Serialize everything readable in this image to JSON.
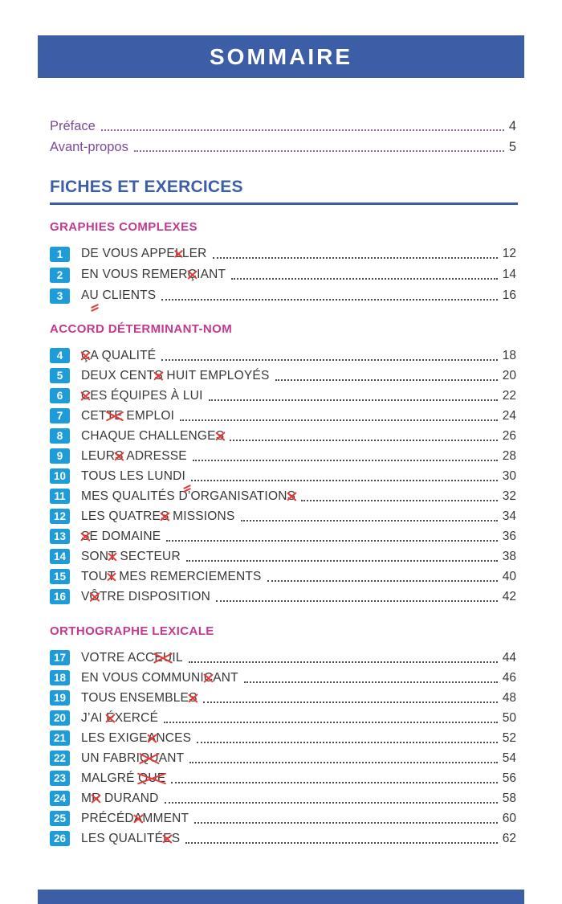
{
  "page": {
    "title": "SOMMAIRE"
  },
  "colors": {
    "header_blue": "#3b5ea6",
    "badge_blue": "#1d9cd9",
    "section_heading_pink": "#c2398e",
    "frontmatter_purple": "#7c4a9b",
    "error_mark_red": "#e23b38",
    "item_text": "#383838"
  },
  "front_matter": [
    {
      "label": "Préface",
      "page": "4"
    },
    {
      "label": "Avant-propos",
      "page": "5"
    }
  ],
  "main_heading": "FICHES ET EXERCICES",
  "sections": [
    {
      "heading": "GRAPHIES COMPLEXES",
      "items": [
        {
          "num": "1",
          "page": "12",
          "parts": [
            {
              "t": "DE VOUS APPE"
            },
            {
              "t": "L",
              "m": "x"
            },
            {
              "t": "LER"
            }
          ]
        },
        {
          "num": "2",
          "page": "14",
          "parts": [
            {
              "t": "EN VOUS REMER"
            },
            {
              "t": "Ç",
              "m": "x"
            },
            {
              "t": "IANT"
            }
          ]
        },
        {
          "num": "3",
          "page": "16",
          "parts": [
            {
              "t": "A"
            },
            {
              "t": "U",
              "m": "ins"
            },
            {
              "t": " CLIENTS"
            }
          ]
        }
      ]
    },
    {
      "heading": "ACCORD DÉTERMINANT-NOM",
      "items": [
        {
          "num": "4",
          "page": "18",
          "parts": [
            {
              "t": "Ç",
              "m": "x"
            },
            {
              "t": "A QUALITÉ"
            }
          ]
        },
        {
          "num": "5",
          "page": "20",
          "parts": [
            {
              "t": "DEUX CENT"
            },
            {
              "t": "S",
              "m": "x"
            },
            {
              "t": " HUIT EMPLOYÉS"
            }
          ]
        },
        {
          "num": "6",
          "page": "22",
          "parts": [
            {
              "t": "C",
              "m": "x"
            },
            {
              "t": "ES ÉQUIPES À LUI"
            }
          ]
        },
        {
          "num": "7",
          "page": "24",
          "parts": [
            {
              "t": "CET"
            },
            {
              "t": "TE",
              "m": "x"
            },
            {
              "t": " EMPLOI"
            }
          ]
        },
        {
          "num": "8",
          "page": "26",
          "parts": [
            {
              "t": "CHAQUE CHALLENGE"
            },
            {
              "t": "S",
              "m": "x"
            }
          ]
        },
        {
          "num": "9",
          "page": "28",
          "parts": [
            {
              "t": "LEUR"
            },
            {
              "t": "S",
              "m": "x"
            },
            {
              "t": " ADRESSE"
            }
          ]
        },
        {
          "num": "10",
          "page": "30",
          "parts": [
            {
              "t": "TOUS LES LUND"
            },
            {
              "t": "I",
              "m": "ins"
            }
          ]
        },
        {
          "num": "11",
          "page": "32",
          "parts": [
            {
              "t": "MES QUALITÉS D’ORGANISATION"
            },
            {
              "t": "S",
              "m": "x"
            }
          ]
        },
        {
          "num": "12",
          "page": "34",
          "parts": [
            {
              "t": "LES QUATRE"
            },
            {
              "t": "S",
              "m": "x"
            },
            {
              "t": " MISSIONS"
            }
          ]
        },
        {
          "num": "13",
          "page": "36",
          "parts": [
            {
              "t": "S",
              "m": "x"
            },
            {
              "t": "E DOMAINE"
            }
          ]
        },
        {
          "num": "14",
          "page": "38",
          "parts": [
            {
              "t": "SON"
            },
            {
              "t": "T",
              "m": "x"
            },
            {
              "t": " SECTEUR"
            }
          ]
        },
        {
          "num": "15",
          "page": "40",
          "parts": [
            {
              "t": "TOU"
            },
            {
              "t": "T",
              "m": "x"
            },
            {
              "t": " MES REMERCIEMENTS"
            }
          ]
        },
        {
          "num": "16",
          "page": "42",
          "parts": [
            {
              "t": "V"
            },
            {
              "t": "Ô",
              "m": "x"
            },
            {
              "t": "TRE DISPOSITION"
            }
          ]
        }
      ]
    },
    {
      "heading": "ORTHOGRAPHE LEXICALE",
      "items": [
        {
          "num": "17",
          "page": "44",
          "parts": [
            {
              "t": "VOTRE ACC"
            },
            {
              "t": "EU",
              "m": "x"
            },
            {
              "t": "IL"
            }
          ]
        },
        {
          "num": "18",
          "page": "46",
          "parts": [
            {
              "t": "EN VOUS COMMUNI"
            },
            {
              "t": "C",
              "m": "x"
            },
            {
              "t": "ANT"
            }
          ]
        },
        {
          "num": "19",
          "page": "48",
          "parts": [
            {
              "t": "TOUS ENSEMBLE"
            },
            {
              "t": "S",
              "m": "x"
            }
          ]
        },
        {
          "num": "20",
          "page": "50",
          "parts": [
            {
              "t": "J’AI "
            },
            {
              "t": "É",
              "m": "x"
            },
            {
              "t": "XERCÉ"
            }
          ]
        },
        {
          "num": "21",
          "page": "52",
          "parts": [
            {
              "t": "LES EXIGE"
            },
            {
              "t": "A",
              "m": "x"
            },
            {
              "t": "NCES"
            }
          ]
        },
        {
          "num": "22",
          "page": "54",
          "parts": [
            {
              "t": "UN FABRI"
            },
            {
              "t": "QU",
              "m": "x"
            },
            {
              "t": "ANT"
            }
          ]
        },
        {
          "num": "23",
          "page": "56",
          "parts": [
            {
              "t": "MALGRÉ "
            },
            {
              "t": "QUE",
              "m": "x"
            }
          ]
        },
        {
          "num": "24",
          "page": "58",
          "parts": [
            {
              "t": "M"
            },
            {
              "t": "R",
              "m": "x"
            },
            {
              "t": " DURAND"
            }
          ]
        },
        {
          "num": "25",
          "page": "60",
          "parts": [
            {
              "t": "PRÉCÉD"
            },
            {
              "t": "A",
              "m": "x"
            },
            {
              "t": "MMENT"
            }
          ]
        },
        {
          "num": "26",
          "page": "62",
          "parts": [
            {
              "t": "LES QUALITÉ"
            },
            {
              "t": "E",
              "m": "x"
            },
            {
              "t": "S"
            }
          ]
        }
      ]
    }
  ]
}
